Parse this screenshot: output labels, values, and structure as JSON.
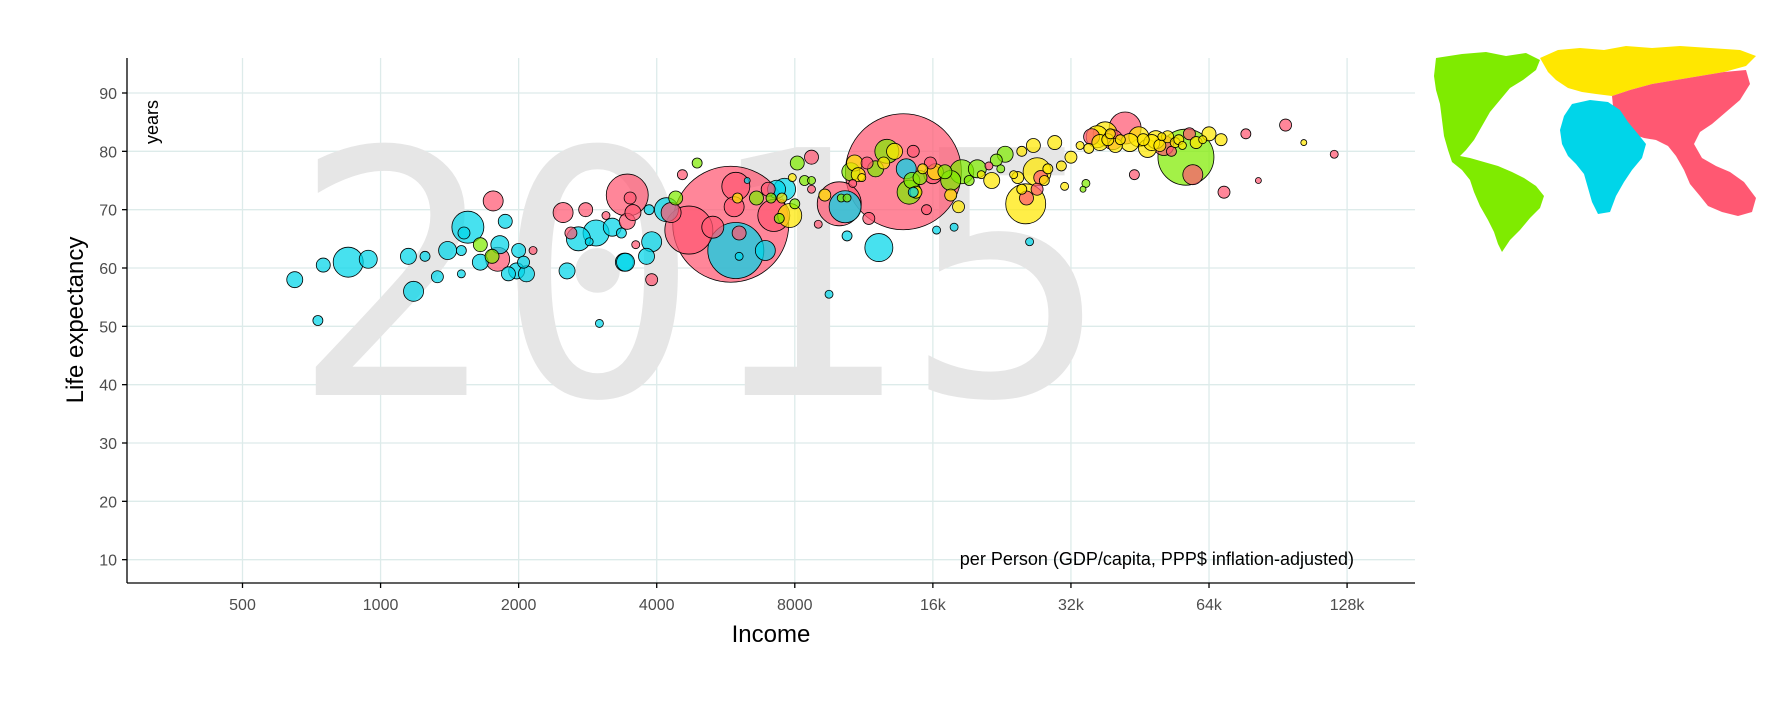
{
  "chart_data": {
    "type": "scatter",
    "title": "",
    "year": "2015",
    "xlabel": "Income",
    "xunit": "per Person (GDP/capita, PPP$ inflation-adjusted)",
    "ylabel": "Life expectancy",
    "yunit": "years",
    "x_scale": "log2",
    "xlim": [
      280,
      180000
    ],
    "ylim": [
      6,
      96
    ],
    "x_ticks": [
      {
        "value": 500,
        "label": "500"
      },
      {
        "value": 1000,
        "label": "1000"
      },
      {
        "value": 2000,
        "label": "2000"
      },
      {
        "value": 4000,
        "label": "4000"
      },
      {
        "value": 8000,
        "label": "8000"
      },
      {
        "value": 16000,
        "label": "16k"
      },
      {
        "value": 32000,
        "label": "32k"
      },
      {
        "value": 64000,
        "label": "64k"
      },
      {
        "value": 128000,
        "label": "128k"
      }
    ],
    "y_ticks": [
      10,
      20,
      30,
      40,
      50,
      60,
      70,
      80,
      90
    ],
    "grid": true,
    "legend": "world-map top-right",
    "region_colors": {
      "africa": "#00d5e9",
      "americas": "#7feb00",
      "asia": "#ff5872",
      "europe": "#ffe700"
    },
    "points": [
      {
        "x": 650,
        "y": 58,
        "r": 8,
        "region": "africa"
      },
      {
        "x": 730,
        "y": 51,
        "r": 5,
        "region": "africa"
      },
      {
        "x": 750,
        "y": 60.5,
        "r": 7,
        "region": "africa"
      },
      {
        "x": 850,
        "y": 61,
        "r": 15,
        "region": "africa"
      },
      {
        "x": 940,
        "y": 61.5,
        "r": 9,
        "region": "africa"
      },
      {
        "x": 1150,
        "y": 62,
        "r": 8,
        "region": "africa"
      },
      {
        "x": 1180,
        "y": 56,
        "r": 10,
        "region": "africa"
      },
      {
        "x": 1250,
        "y": 62,
        "r": 5,
        "region": "africa"
      },
      {
        "x": 1330,
        "y": 58.5,
        "r": 6,
        "region": "africa"
      },
      {
        "x": 1400,
        "y": 63,
        "r": 9,
        "region": "africa"
      },
      {
        "x": 1500,
        "y": 59,
        "r": 4,
        "region": "africa"
      },
      {
        "x": 1500,
        "y": 63,
        "r": 5,
        "region": "africa"
      },
      {
        "x": 1520,
        "y": 66,
        "r": 6,
        "region": "africa"
      },
      {
        "x": 1550,
        "y": 67,
        "r": 16,
        "region": "africa"
      },
      {
        "x": 1650,
        "y": 61,
        "r": 8,
        "region": "africa"
      },
      {
        "x": 1750,
        "y": 62,
        "r": 7,
        "region": "americas"
      },
      {
        "x": 1760,
        "y": 71.5,
        "r": 10,
        "region": "asia"
      },
      {
        "x": 1800,
        "y": 61.5,
        "r": 12,
        "region": "asia"
      },
      {
        "x": 1820,
        "y": 64,
        "r": 9,
        "region": "africa"
      },
      {
        "x": 1650,
        "y": 64,
        "r": 7,
        "region": "americas"
      },
      {
        "x": 1870,
        "y": 68,
        "r": 7,
        "region": "africa"
      },
      {
        "x": 1900,
        "y": 59,
        "r": 7,
        "region": "africa"
      },
      {
        "x": 1980,
        "y": 59.5,
        "r": 8,
        "region": "africa"
      },
      {
        "x": 2000,
        "y": 63,
        "r": 7,
        "region": "africa"
      },
      {
        "x": 2050,
        "y": 61,
        "r": 6,
        "region": "africa"
      },
      {
        "x": 2080,
        "y": 59,
        "r": 8,
        "region": "africa"
      },
      {
        "x": 2150,
        "y": 63,
        "r": 4,
        "region": "asia"
      },
      {
        "x": 2500,
        "y": 69.5,
        "r": 10,
        "region": "asia"
      },
      {
        "x": 2550,
        "y": 59.5,
        "r": 8,
        "region": "africa"
      },
      {
        "x": 2600,
        "y": 66,
        "r": 6,
        "region": "asia"
      },
      {
        "x": 2700,
        "y": 65,
        "r": 12,
        "region": "africa"
      },
      {
        "x": 2800,
        "y": 70,
        "r": 7,
        "region": "asia"
      },
      {
        "x": 2850,
        "y": 64.5,
        "r": 4,
        "region": "africa"
      },
      {
        "x": 2950,
        "y": 66,
        "r": 13,
        "region": "africa"
      },
      {
        "x": 3000,
        "y": 50.5,
        "r": 4,
        "region": "africa"
      },
      {
        "x": 3100,
        "y": 69,
        "r": 4,
        "region": "asia"
      },
      {
        "x": 3200,
        "y": 67,
        "r": 9,
        "region": "africa"
      },
      {
        "x": 3350,
        "y": 66,
        "r": 5,
        "region": "africa"
      },
      {
        "x": 3400,
        "y": 61,
        "r": 9,
        "region": "africa"
      },
      {
        "x": 3420,
        "y": 61,
        "r": 9,
        "region": "africa"
      },
      {
        "x": 3450,
        "y": 68,
        "r": 8,
        "region": "asia"
      },
      {
        "x": 3450,
        "y": 72.5,
        "r": 21,
        "region": "asia"
      },
      {
        "x": 3500,
        "y": 72,
        "r": 6,
        "region": "asia"
      },
      {
        "x": 3550,
        "y": 69.5,
        "r": 8,
        "region": "asia"
      },
      {
        "x": 3600,
        "y": 64,
        "r": 4,
        "region": "asia"
      },
      {
        "x": 3800,
        "y": 62,
        "r": 8,
        "region": "africa"
      },
      {
        "x": 3850,
        "y": 70,
        "r": 5,
        "region": "africa"
      },
      {
        "x": 3900,
        "y": 58,
        "r": 6,
        "region": "asia"
      },
      {
        "x": 3900,
        "y": 64.5,
        "r": 10,
        "region": "africa"
      },
      {
        "x": 4200,
        "y": 70,
        "r": 12,
        "region": "africa"
      },
      {
        "x": 4300,
        "y": 69.5,
        "r": 10,
        "region": "asia"
      },
      {
        "x": 4400,
        "y": 72,
        "r": 7,
        "region": "americas"
      },
      {
        "x": 4550,
        "y": 76,
        "r": 5,
        "region": "asia"
      },
      {
        "x": 4700,
        "y": 66.5,
        "r": 24,
        "region": "asia"
      },
      {
        "x": 4900,
        "y": 78,
        "r": 5,
        "region": "americas"
      },
      {
        "x": 5300,
        "y": 67,
        "r": 11,
        "region": "asia"
      },
      {
        "x": 5800,
        "y": 67.5,
        "r": 58,
        "region": "asia"
      },
      {
        "x": 5900,
        "y": 70.5,
        "r": 10,
        "region": "asia"
      },
      {
        "x": 5950,
        "y": 74,
        "r": 14,
        "region": "asia"
      },
      {
        "x": 5950,
        "y": 63,
        "r": 28,
        "region": "africa"
      },
      {
        "x": 6000,
        "y": 72,
        "r": 5,
        "region": "europe"
      },
      {
        "x": 6050,
        "y": 66,
        "r": 7,
        "region": "asia"
      },
      {
        "x": 6050,
        "y": 62,
        "r": 4,
        "region": "africa"
      },
      {
        "x": 6300,
        "y": 75,
        "r": 3,
        "region": "africa"
      },
      {
        "x": 6600,
        "y": 72,
        "r": 7,
        "region": "americas"
      },
      {
        "x": 6900,
        "y": 63,
        "r": 10,
        "region": "africa"
      },
      {
        "x": 7000,
        "y": 73.5,
        "r": 7,
        "region": "asia"
      },
      {
        "x": 7100,
        "y": 72,
        "r": 5,
        "region": "americas"
      },
      {
        "x": 7200,
        "y": 69,
        "r": 16,
        "region": "asia"
      },
      {
        "x": 7300,
        "y": 73.5,
        "r": 9,
        "region": "africa"
      },
      {
        "x": 7400,
        "y": 68.5,
        "r": 5,
        "region": "americas"
      },
      {
        "x": 7500,
        "y": 72,
        "r": 5,
        "region": "europe"
      },
      {
        "x": 7600,
        "y": 73.5,
        "r": 11,
        "region": "africa"
      },
      {
        "x": 7800,
        "y": 69,
        "r": 12,
        "region": "europe"
      },
      {
        "x": 7900,
        "y": 75.5,
        "r": 4,
        "region": "europe"
      },
      {
        "x": 8000,
        "y": 71,
        "r": 5,
        "region": "americas"
      },
      {
        "x": 8100,
        "y": 78,
        "r": 7,
        "region": "americas"
      },
      {
        "x": 8400,
        "y": 75,
        "r": 5,
        "region": "americas"
      },
      {
        "x": 8700,
        "y": 79,
        "r": 7,
        "region": "asia"
      },
      {
        "x": 8700,
        "y": 73.5,
        "r": 4,
        "region": "asia"
      },
      {
        "x": 8700,
        "y": 75,
        "r": 4,
        "region": "americas"
      },
      {
        "x": 9000,
        "y": 67.5,
        "r": 4,
        "region": "asia"
      },
      {
        "x": 9300,
        "y": 72.5,
        "r": 6,
        "region": "europe"
      },
      {
        "x": 9500,
        "y": 55.5,
        "r": 4,
        "region": "africa"
      },
      {
        "x": 10000,
        "y": 71,
        "r": 22,
        "region": "asia"
      },
      {
        "x": 10100,
        "y": 72,
        "r": 4,
        "region": "americas"
      },
      {
        "x": 10300,
        "y": 70.5,
        "r": 16,
        "region": "africa"
      },
      {
        "x": 10400,
        "y": 72,
        "r": 4,
        "region": "americas"
      },
      {
        "x": 10400,
        "y": 65.5,
        "r": 5,
        "region": "africa"
      },
      {
        "x": 10600,
        "y": 76.5,
        "r": 9,
        "region": "americas"
      },
      {
        "x": 10700,
        "y": 74.5,
        "r": 4,
        "region": "asia"
      },
      {
        "x": 10800,
        "y": 78,
        "r": 8,
        "region": "europe"
      },
      {
        "x": 11000,
        "y": 76,
        "r": 7,
        "region": "europe"
      },
      {
        "x": 11200,
        "y": 75.5,
        "r": 4,
        "region": "europe"
      },
      {
        "x": 11500,
        "y": 78,
        "r": 6,
        "region": "asia"
      },
      {
        "x": 11600,
        "y": 68.5,
        "r": 6,
        "region": "asia"
      },
      {
        "x": 12000,
        "y": 77,
        "r": 8,
        "region": "americas"
      },
      {
        "x": 12200,
        "y": 63.5,
        "r": 14,
        "region": "africa"
      },
      {
        "x": 12500,
        "y": 78,
        "r": 6,
        "region": "europe"
      },
      {
        "x": 12700,
        "y": 80,
        "r": 12,
        "region": "americas"
      },
      {
        "x": 13200,
        "y": 80,
        "r": 8,
        "region": "europe"
      },
      {
        "x": 13800,
        "y": 76.5,
        "r": 58,
        "region": "asia"
      },
      {
        "x": 14000,
        "y": 77,
        "r": 10,
        "region": "africa"
      },
      {
        "x": 14200,
        "y": 73,
        "r": 12,
        "region": "americas"
      },
      {
        "x": 14400,
        "y": 75,
        "r": 8,
        "region": "americas"
      },
      {
        "x": 14500,
        "y": 73,
        "r": 5,
        "region": "africa"
      },
      {
        "x": 14500,
        "y": 80,
        "r": 6,
        "region": "asia"
      },
      {
        "x": 14700,
        "y": 73,
        "r": 6,
        "region": "europe"
      },
      {
        "x": 15000,
        "y": 75.5,
        "r": 7,
        "region": "americas"
      },
      {
        "x": 15200,
        "y": 77,
        "r": 5,
        "region": "europe"
      },
      {
        "x": 15500,
        "y": 70,
        "r": 5,
        "region": "asia"
      },
      {
        "x": 15800,
        "y": 78,
        "r": 6,
        "region": "asia"
      },
      {
        "x": 16000,
        "y": 76,
        "r": 9,
        "region": "asia"
      },
      {
        "x": 16200,
        "y": 76.5,
        "r": 8,
        "region": "europe"
      },
      {
        "x": 16300,
        "y": 66.5,
        "r": 4,
        "region": "africa"
      },
      {
        "x": 17000,
        "y": 76.5,
        "r": 7,
        "region": "americas"
      },
      {
        "x": 17500,
        "y": 72.5,
        "r": 6,
        "region": "europe"
      },
      {
        "x": 17500,
        "y": 75,
        "r": 10,
        "region": "americas"
      },
      {
        "x": 17800,
        "y": 67,
        "r": 4,
        "region": "africa"
      },
      {
        "x": 18200,
        "y": 70.5,
        "r": 6,
        "region": "europe"
      },
      {
        "x": 18500,
        "y": 76.5,
        "r": 12,
        "region": "americas"
      },
      {
        "x": 19200,
        "y": 75,
        "r": 5,
        "region": "americas"
      },
      {
        "x": 20000,
        "y": 77,
        "r": 9,
        "region": "americas"
      },
      {
        "x": 20400,
        "y": 76,
        "r": 4,
        "region": "europe"
      },
      {
        "x": 21200,
        "y": 77.5,
        "r": 4,
        "region": "asia"
      },
      {
        "x": 21500,
        "y": 75,
        "r": 8,
        "region": "europe"
      },
      {
        "x": 22000,
        "y": 78.5,
        "r": 6,
        "region": "americas"
      },
      {
        "x": 22500,
        "y": 77,
        "r": 4,
        "region": "americas"
      },
      {
        "x": 23000,
        "y": 79.5,
        "r": 8,
        "region": "americas"
      },
      {
        "x": 24000,
        "y": 76,
        "r": 4,
        "region": "europe"
      },
      {
        "x": 24500,
        "y": 75.5,
        "r": 6,
        "region": "europe"
      },
      {
        "x": 25000,
        "y": 80,
        "r": 5,
        "region": "europe"
      },
      {
        "x": 25500,
        "y": 71,
        "r": 20,
        "region": "europe"
      },
      {
        "x": 25000,
        "y": 73.5,
        "r": 5,
        "region": "europe"
      },
      {
        "x": 25600,
        "y": 72,
        "r": 7,
        "region": "asia"
      },
      {
        "x": 26000,
        "y": 64.5,
        "r": 4,
        "region": "africa"
      },
      {
        "x": 26500,
        "y": 81,
        "r": 7,
        "region": "europe"
      },
      {
        "x": 27000,
        "y": 76.5,
        "r": 14,
        "region": "europe"
      },
      {
        "x": 27000,
        "y": 73.5,
        "r": 6,
        "region": "asia"
      },
      {
        "x": 27500,
        "y": 75.5,
        "r": 7,
        "region": "asia"
      },
      {
        "x": 28000,
        "y": 75,
        "r": 5,
        "region": "europe"
      },
      {
        "x": 28500,
        "y": 77,
        "r": 5,
        "region": "europe"
      },
      {
        "x": 29500,
        "y": 81.5,
        "r": 7,
        "region": "europe"
      },
      {
        "x": 30500,
        "y": 77.5,
        "r": 5,
        "region": "europe"
      },
      {
        "x": 31000,
        "y": 74,
        "r": 4,
        "region": "europe"
      },
      {
        "x": 32000,
        "y": 79,
        "r": 6,
        "region": "europe"
      },
      {
        "x": 33500,
        "y": 81,
        "r": 4,
        "region": "europe"
      },
      {
        "x": 34000,
        "y": 73.5,
        "r": 3,
        "region": "americas"
      },
      {
        "x": 34500,
        "y": 74.5,
        "r": 4,
        "region": "americas"
      },
      {
        "x": 35000,
        "y": 80.5,
        "r": 5,
        "region": "europe"
      },
      {
        "x": 35500,
        "y": 82.5,
        "r": 8,
        "region": "asia"
      },
      {
        "x": 36500,
        "y": 82.5,
        "r": 11,
        "region": "europe"
      },
      {
        "x": 37000,
        "y": 81.5,
        "r": 8,
        "region": "europe"
      },
      {
        "x": 38000,
        "y": 83,
        "r": 12,
        "region": "europe"
      },
      {
        "x": 38500,
        "y": 82,
        "r": 6,
        "region": "europe"
      },
      {
        "x": 39000,
        "y": 83,
        "r": 5,
        "region": "europe"
      },
      {
        "x": 39500,
        "y": 82,
        "r": 10,
        "region": "asia"
      },
      {
        "x": 40000,
        "y": 81,
        "r": 7,
        "region": "europe"
      },
      {
        "x": 41000,
        "y": 82,
        "r": 5,
        "region": "europe"
      },
      {
        "x": 42000,
        "y": 84,
        "r": 16,
        "region": "asia"
      },
      {
        "x": 43000,
        "y": 81.5,
        "r": 9,
        "region": "europe"
      },
      {
        "x": 44000,
        "y": 76,
        "r": 5,
        "region": "asia"
      },
      {
        "x": 45000,
        "y": 82.5,
        "r": 10,
        "region": "europe"
      },
      {
        "x": 46000,
        "y": 82,
        "r": 6,
        "region": "europe"
      },
      {
        "x": 47000,
        "y": 80.5,
        "r": 9,
        "region": "europe"
      },
      {
        "x": 48000,
        "y": 81.5,
        "r": 8,
        "region": "europe"
      },
      {
        "x": 49000,
        "y": 82,
        "r": 9,
        "region": "europe"
      },
      {
        "x": 50000,
        "y": 81,
        "r": 6,
        "region": "europe"
      },
      {
        "x": 50500,
        "y": 82.5,
        "r": 4,
        "region": "europe"
      },
      {
        "x": 51000,
        "y": 81,
        "r": 10,
        "region": "asia"
      },
      {
        "x": 52000,
        "y": 82.5,
        "r": 6,
        "region": "europe"
      },
      {
        "x": 53000,
        "y": 80,
        "r": 5,
        "region": "asia"
      },
      {
        "x": 54000,
        "y": 81.5,
        "r": 5,
        "region": "europe"
      },
      {
        "x": 55000,
        "y": 82,
        "r": 5,
        "region": "europe"
      },
      {
        "x": 56000,
        "y": 81,
        "r": 4,
        "region": "europe"
      },
      {
        "x": 57000,
        "y": 79,
        "r": 28,
        "region": "americas"
      },
      {
        "x": 58000,
        "y": 83,
        "r": 6,
        "region": "asia"
      },
      {
        "x": 59000,
        "y": 76,
        "r": 10,
        "region": "asia"
      },
      {
        "x": 60000,
        "y": 81.5,
        "r": 6,
        "region": "europe"
      },
      {
        "x": 62000,
        "y": 82,
        "r": 4,
        "region": "europe"
      },
      {
        "x": 64000,
        "y": 83,
        "r": 7,
        "region": "europe"
      },
      {
        "x": 68000,
        "y": 82,
        "r": 6,
        "region": "europe"
      },
      {
        "x": 69000,
        "y": 73,
        "r": 6,
        "region": "asia"
      },
      {
        "x": 77000,
        "y": 83,
        "r": 5,
        "region": "asia"
      },
      {
        "x": 82000,
        "y": 75,
        "r": 3,
        "region": "asia"
      },
      {
        "x": 94000,
        "y": 84.5,
        "r": 6,
        "region": "asia"
      },
      {
        "x": 103000,
        "y": 81.5,
        "r": 3,
        "region": "europe"
      },
      {
        "x": 120000,
        "y": 79.5,
        "r": 4,
        "region": "asia"
      }
    ]
  }
}
